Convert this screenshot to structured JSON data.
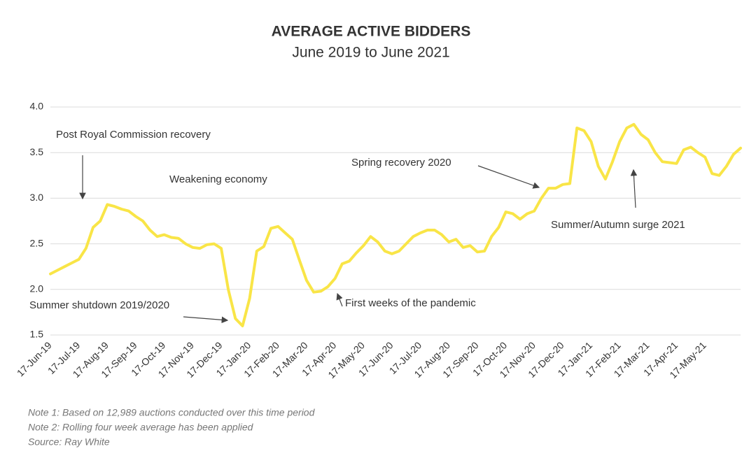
{
  "chart_data": {
    "type": "line",
    "title": "AVERAGE ACTIVE BIDDERS",
    "subtitle": "June 2019 to June 2021",
    "categories": [
      "17-Jun-19",
      null,
      null,
      null,
      "17-Jul-19",
      null,
      null,
      null,
      "17-Aug-19",
      null,
      null,
      null,
      "17-Sep-19",
      null,
      null,
      null,
      "17-Oct-19",
      null,
      null,
      null,
      "17-Nov-19",
      null,
      null,
      null,
      "17-Dec-19",
      null,
      null,
      null,
      "17-Jan-20",
      null,
      null,
      null,
      "17-Feb-20",
      null,
      null,
      null,
      "17-Mar-20",
      null,
      null,
      null,
      "17-Apr-20",
      null,
      null,
      null,
      "17-May-20",
      null,
      null,
      null,
      "17-Jun-20",
      null,
      null,
      null,
      "17-Jul-20",
      null,
      null,
      null,
      "17-Aug-20",
      null,
      null,
      null,
      "17-Sep-20",
      null,
      null,
      null,
      "17-Oct-20",
      null,
      null,
      null,
      "17-Nov-20",
      null,
      null,
      null,
      "17-Dec-20",
      null,
      null,
      null,
      "17-Jan-21",
      null,
      null,
      null,
      "17-Feb-21",
      null,
      null,
      null,
      "17-Mar-21",
      null,
      null,
      null,
      "17-Apr-21",
      null,
      null,
      null,
      "17-May-21",
      null,
      null,
      null,
      null,
      null
    ],
    "values": [
      2.17,
      2.21,
      2.25,
      2.29,
      2.33,
      2.45,
      2.68,
      2.75,
      2.93,
      2.91,
      2.88,
      2.86,
      2.8,
      2.75,
      2.65,
      2.58,
      2.6,
      2.57,
      2.56,
      2.5,
      2.46,
      2.45,
      2.49,
      2.5,
      2.45,
      2.0,
      1.68,
      1.6,
      1.9,
      2.42,
      2.47,
      2.67,
      2.69,
      2.62,
      2.55,
      2.32,
      2.1,
      1.97,
      1.98,
      2.03,
      2.12,
      2.28,
      2.31,
      2.4,
      2.48,
      2.58,
      2.52,
      2.42,
      2.39,
      2.42,
      2.5,
      2.58,
      2.62,
      2.65,
      2.65,
      2.6,
      2.52,
      2.55,
      2.46,
      2.48,
      2.41,
      2.42,
      2.58,
      2.68,
      2.85,
      2.83,
      2.77,
      2.83,
      2.86,
      3.0,
      3.11,
      3.11,
      3.15,
      3.16,
      3.77,
      3.74,
      3.62,
      3.35,
      3.21,
      3.4,
      3.62,
      3.77,
      3.81,
      3.7,
      3.64,
      3.5,
      3.4,
      3.39,
      3.38,
      3.53,
      3.56,
      3.5,
      3.45,
      3.27,
      3.25,
      3.35,
      3.48,
      3.55
    ],
    "color": "#f9e547",
    "ylim": [
      1.5,
      4.0
    ],
    "yticks": [
      {
        "value": 1.5,
        "label": "1.5"
      },
      {
        "value": 2,
        "label": "2.0"
      },
      {
        "value": 2.5,
        "label": "2.5"
      },
      {
        "value": 3,
        "label": "3.0"
      },
      {
        "value": 3.5,
        "label": "3.5"
      },
      {
        "value": 4,
        "label": "4.0"
      }
    ],
    "grid": true,
    "annotations": [
      "Post Royal Commission recovery",
      "Weakening economy",
      "Summer shutdown 2019/2020",
      "First weeks of the pandemic",
      "Spring recovery 2020",
      "Summer/Autumn surge 2021"
    ],
    "notes": [
      "Note 1: Based on 12,989 auctions conducted over this time period",
      "Note 2: Rolling four week average has been applied",
      "Source: Ray White"
    ]
  }
}
